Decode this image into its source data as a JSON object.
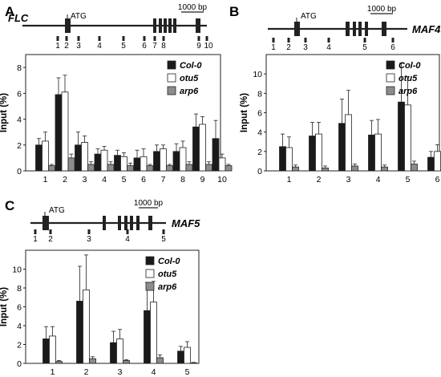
{
  "colors": {
    "col0": "#1a1a1a",
    "otu5": "#ffffff",
    "arp6": "#8c8c8c",
    "line": "#222222"
  },
  "chart_data": [
    {
      "panel": "A",
      "type": "bar",
      "gene": "FLC",
      "atg": "ATG",
      "scale": "1000 bp",
      "ylabel": "Input (%)",
      "ylim": [
        0,
        9
      ],
      "yticks": [
        0,
        2,
        4,
        6,
        8
      ],
      "categories": [
        "1",
        "2",
        "3",
        "4",
        "5",
        "6",
        "7",
        "8",
        "9",
        "10"
      ],
      "series": [
        {
          "name": "Col-0",
          "values": [
            2.0,
            5.9,
            2.0,
            1.3,
            1.2,
            1.0,
            1.5,
            1.5,
            3.4,
            2.5
          ],
          "errors": [
            0.5,
            1.3,
            1.0,
            0.4,
            0.4,
            0.6,
            0.5,
            0.6,
            1.0,
            1.4
          ]
        },
        {
          "name": "otu5",
          "values": [
            2.3,
            6.1,
            2.2,
            1.6,
            1.1,
            1.1,
            1.7,
            1.8,
            3.6,
            1.0
          ],
          "errors": [
            0.7,
            1.3,
            0.5,
            0.3,
            0.3,
            0.6,
            0.3,
            0.5,
            0.6,
            0.3
          ]
        },
        {
          "name": "arp6",
          "values": [
            0.4,
            1.0,
            0.5,
            0.5,
            0.4,
            0.4,
            0.4,
            0.5,
            0.5,
            0.4
          ],
          "errors": [
            0.1,
            0.3,
            0.2,
            0.2,
            0.2,
            0.1,
            0.1,
            0.2,
            0.2,
            0.1
          ]
        }
      ]
    },
    {
      "panel": "B",
      "type": "bar",
      "gene": "MAF4",
      "atg": "ATG",
      "scale": "1000 bp",
      "ylabel": "Input (%)",
      "ylim": [
        0,
        12
      ],
      "yticks": [
        0,
        2,
        4,
        6,
        8,
        10
      ],
      "categories": [
        "1",
        "2",
        "3",
        "4",
        "5",
        "6"
      ],
      "series": [
        {
          "name": "Col-0",
          "values": [
            2.5,
            3.6,
            4.9,
            3.7,
            7.1,
            1.4
          ],
          "errors": [
            1.3,
            1.4,
            2.5,
            1.5,
            4.0,
            0.6
          ]
        },
        {
          "name": "otu5",
          "values": [
            2.4,
            3.8,
            5.8,
            3.8,
            6.8,
            2.0
          ],
          "errors": [
            1.1,
            1.2,
            2.5,
            1.5,
            2.9,
            0.7
          ]
        },
        {
          "name": "arp6",
          "values": [
            0.4,
            0.3,
            0.5,
            0.4,
            0.7,
            0.05
          ],
          "errors": [
            0.2,
            0.2,
            0.2,
            0.2,
            0.3,
            0.05
          ]
        }
      ]
    },
    {
      "panel": "C",
      "type": "bar",
      "gene": "MAF5",
      "atg": "ATG",
      "scale": "1000 bp",
      "ylabel": "Input (%)",
      "ylim": [
        0,
        12
      ],
      "yticks": [
        0,
        2,
        4,
        6,
        8,
        10
      ],
      "categories": [
        "1",
        "2",
        "3",
        "4",
        "5"
      ],
      "series": [
        {
          "name": "Col-0",
          "values": [
            2.6,
            6.6,
            2.2,
            5.6,
            1.3
          ],
          "errors": [
            1.3,
            3.7,
            1.2,
            3.0,
            0.5
          ]
        },
        {
          "name": "otu5",
          "values": [
            2.9,
            7.8,
            2.6,
            6.5,
            1.7
          ],
          "errors": [
            1.0,
            3.7,
            1.0,
            2.2,
            0.6
          ]
        },
        {
          "name": "arp6",
          "values": [
            0.2,
            0.5,
            0.3,
            0.6,
            0.05
          ],
          "errors": [
            0.1,
            0.2,
            0.1,
            0.3,
            0.05
          ]
        }
      ]
    }
  ]
}
